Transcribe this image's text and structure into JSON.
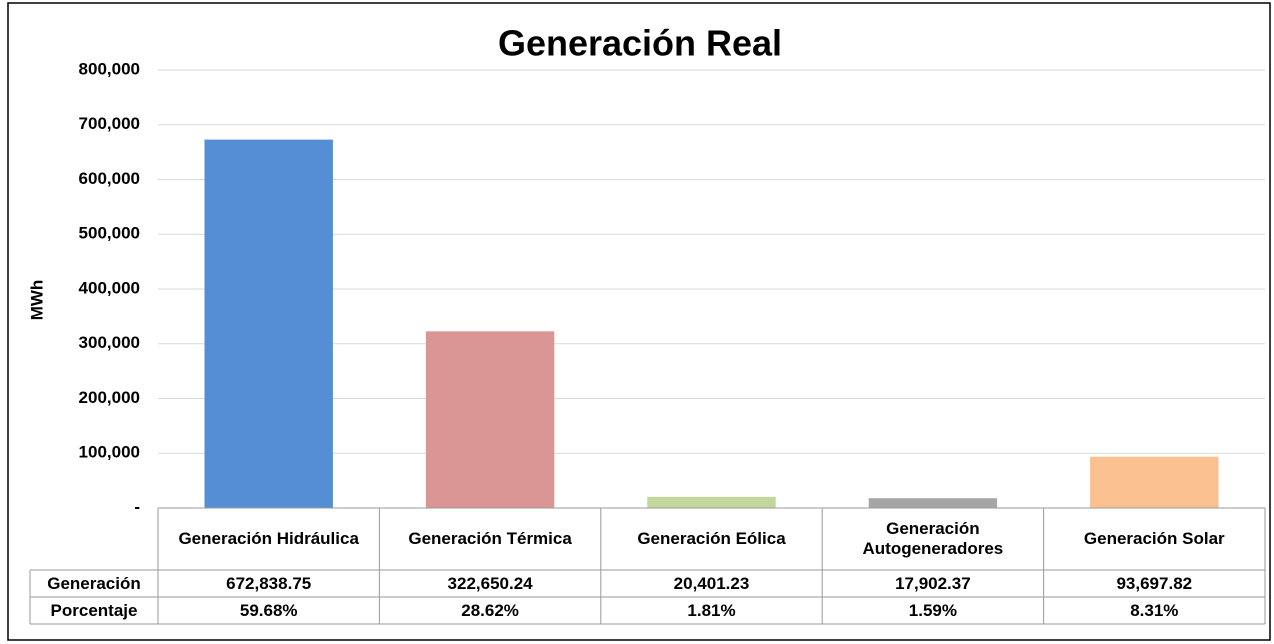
{
  "chart_data": {
    "type": "bar",
    "title": "Generación Real",
    "y_label": "MWh",
    "categories": [
      "Generación Hidráulica",
      "Generación Térmica",
      "Generación Eólica",
      "Generación Autogeneradores",
      "Generación Solar"
    ],
    "colors": [
      "#558ed5",
      "#d99694",
      "#c3d69b",
      "#a6a6a6",
      "#fac090"
    ],
    "series": [
      {
        "name": "Generación",
        "values": [
          672838.75,
          322650.24,
          20401.23,
          17902.37,
          93697.82
        ],
        "value_labels": [
          "672,838.75",
          "322,650.24",
          "20,401.23",
          "17,902.37",
          "93,697.82"
        ]
      },
      {
        "name": "Porcentaje",
        "values": [
          59.68,
          28.62,
          1.81,
          1.59,
          8.31
        ],
        "value_labels": [
          "59.68%",
          "28.62%",
          "1.81%",
          "1.59%",
          "8.31%"
        ]
      }
    ],
    "ylim": [
      0,
      800000
    ],
    "yticks": [
      {
        "value": 0,
        "label": "-"
      },
      {
        "value": 100000,
        "label": "100,000"
      },
      {
        "value": 200000,
        "label": "200,000"
      },
      {
        "value": 300000,
        "label": "300,000"
      },
      {
        "value": 400000,
        "label": "400,000"
      },
      {
        "value": 500000,
        "label": "500,000"
      },
      {
        "value": 600000,
        "label": "600,000"
      },
      {
        "value": 700000,
        "label": "700,000"
      },
      {
        "value": 800000,
        "label": "800,000"
      }
    ],
    "grid": true
  }
}
